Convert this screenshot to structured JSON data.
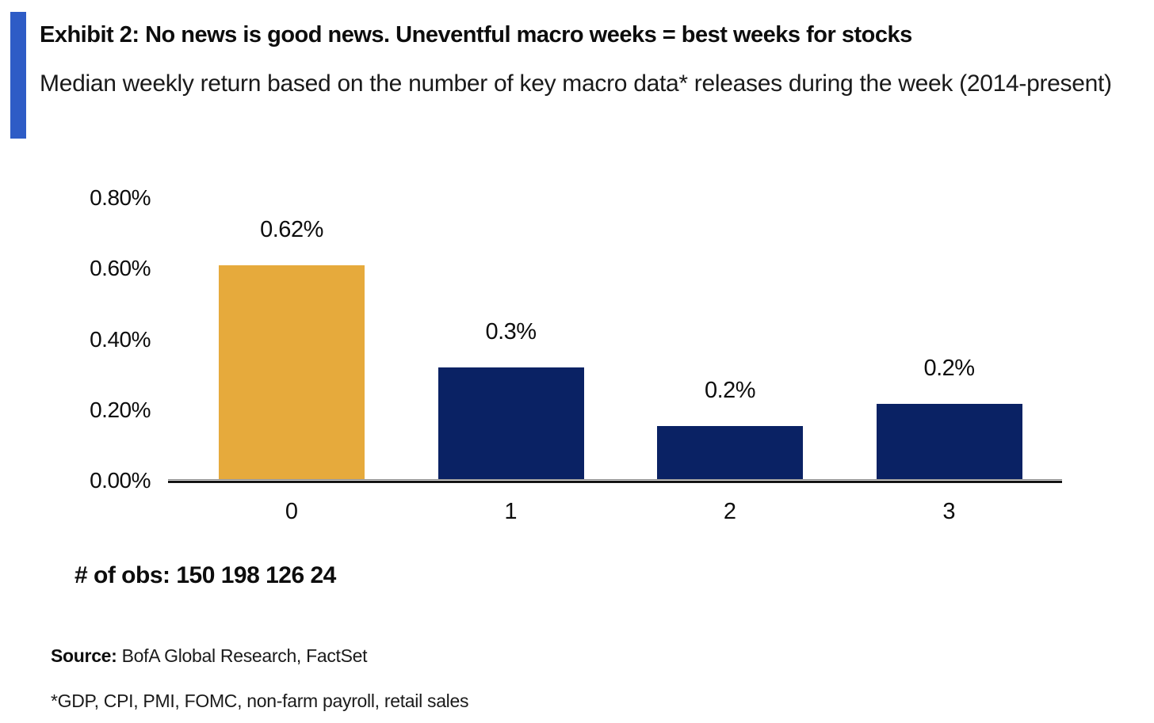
{
  "header": {
    "title": "Exhibit 2: No news is good news. Uneventful macro weeks = best weeks for stocks",
    "subtitle": "Median weekly return based on the number of key macro data* releases during the week (2014-present)"
  },
  "chart_data": {
    "type": "bar",
    "title": "Median weekly return based on the number of key macro data releases during the week (2014-present)",
    "categories": [
      "0",
      "1",
      "2",
      "3"
    ],
    "values": [
      0.62,
      0.3,
      0.2,
      0.2
    ],
    "data_labels": [
      "0.62%",
      "0.3%",
      "0.2%",
      "0.2%"
    ],
    "visual_values": [
      0.61,
      0.32,
      0.152,
      0.215
    ],
    "bar_colors": [
      "#e6aa3c",
      "#0a2264",
      "#0a2264",
      "#0a2264"
    ],
    "y_ticks": [
      "0.80%",
      "0.60%",
      "0.40%",
      "0.20%",
      "0.00%"
    ],
    "ylim": [
      0,
      0.8
    ],
    "xlabel": "",
    "ylabel": "",
    "grid": false,
    "legend_position": "none",
    "observations": [
      150,
      198,
      126,
      24
    ]
  },
  "notes": {
    "obs_line": "# of obs: 150 198 126 24",
    "source_label": "Source:",
    "source_text": " BofA Global Research, FactSet",
    "footnote": "*GDP, CPI, PMI, FOMC, non-farm payroll, retail sales"
  },
  "colors": {
    "accent_bar": "#2e5cc6",
    "gold": "#e6aa3c",
    "navy": "#0a2264",
    "axis": "#151515"
  }
}
